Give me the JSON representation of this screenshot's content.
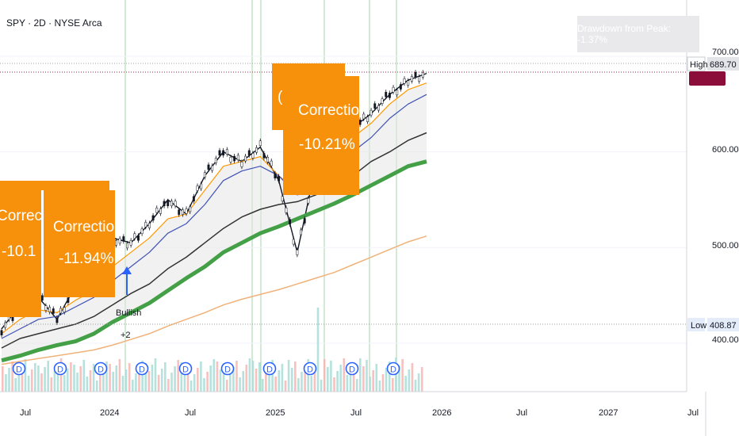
{
  "header": {
    "ticker": "SPY · 2D · NYSE Arca",
    "drawdown_label": "Drawdown from Peak: -1.37%"
  },
  "price_axis": {
    "ticks": [
      "700.00",
      "600.00",
      "500.00",
      "400.00"
    ],
    "high_label": "High",
    "high_value": "689.70",
    "low_label": "Low",
    "low_value": "408.87"
  },
  "time_axis": {
    "ticks": [
      "Jul",
      "2024",
      "Jul",
      "2025",
      "Jul",
      "2026",
      "Jul",
      "2027",
      "Jul"
    ]
  },
  "annotations": {
    "corrections": [
      {
        "title": "Correc",
        "pct": "-10.1"
      },
      {
        "title": "Correction",
        "pct": "-11.94%"
      },
      {
        "title": "(",
        "pct": ""
      },
      {
        "title": "Correction",
        "pct": "-10.21%"
      }
    ],
    "bullish": {
      "label": "Bullish",
      "count": "+2"
    },
    "dividend_marker": "D"
  },
  "colors": {
    "correction_box": "#f7910c",
    "sma200": "#43a047",
    "sma_grey": "#333333",
    "ema_orange": "#f0b27a",
    "ema_blue": "#3f51b5",
    "vline": "#a5d6a7",
    "candle_up": "#26a69a",
    "candle_down": "#ef5350"
  },
  "chart_data": {
    "type": "line",
    "title": "SPY · 2D · NYSE Arca",
    "ylim": [
      370,
      725
    ],
    "x": [
      "2023-05",
      "2023-07",
      "2023-09",
      "2023-10",
      "2023-12",
      "2024-01",
      "2024-03",
      "2024-04",
      "2024-05",
      "2024-07",
      "2024-08",
      "2024-10",
      "2024-12",
      "2025-01",
      "2025-02",
      "2025-03",
      "2025-04",
      "2025-05",
      "2025-06",
      "2025-07",
      "2025-08",
      "2025-09",
      "2025-10",
      "2025-11"
    ],
    "series": [
      {
        "values": [
          415,
          440,
          448,
          425,
          460,
          476,
          510,
          505,
          525,
          550,
          535,
          575,
          600,
          590,
          605,
          570,
          495,
          585,
          600,
          625,
          640,
          660,
          675,
          682
        ]
      },
      {
        "values": [
          410,
          425,
          435,
          432,
          445,
          455,
          480,
          495,
          510,
          530,
          535,
          560,
          585,
          590,
          595,
          575,
          560,
          575,
          595,
          615,
          630,
          650,
          665,
          672
        ]
      },
      {
        "values": [
          405,
          415,
          425,
          428,
          438,
          448,
          465,
          480,
          495,
          515,
          525,
          545,
          570,
          580,
          585,
          575,
          555,
          560,
          580,
          600,
          615,
          635,
          650,
          660
        ]
      },
      {
        "values": [
          395,
          405,
          410,
          415,
          420,
          428,
          440,
          452,
          462,
          478,
          490,
          505,
          520,
          532,
          540,
          545,
          548,
          555,
          565,
          575,
          590,
          600,
          612,
          620
        ]
      },
      {
        "values": [
          382,
          387,
          393,
          398,
          402,
          410,
          422,
          432,
          442,
          455,
          468,
          480,
          495,
          505,
          515,
          522,
          530,
          538,
          546,
          555,
          565,
          575,
          585,
          590
        ]
      },
      {
        "values": [
          378,
          381,
          384,
          387,
          390,
          393,
          398,
          404,
          410,
          418,
          425,
          432,
          440,
          446,
          451,
          456,
          462,
          468,
          474,
          482,
          490,
          498,
          506,
          512
        ]
      }
    ]
  }
}
